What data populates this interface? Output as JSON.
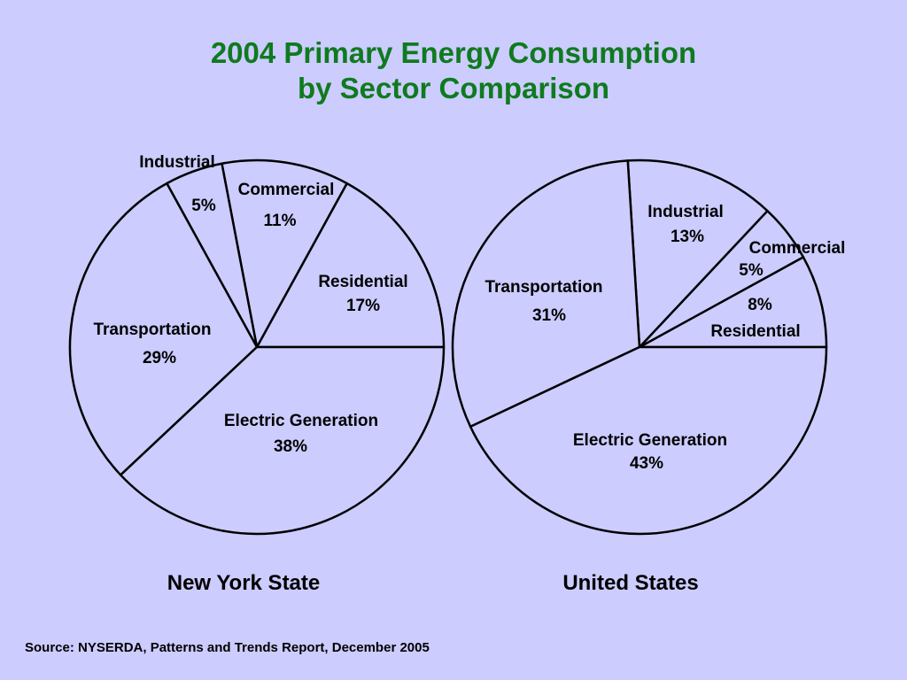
{
  "title": {
    "line1": "2004 Primary Energy Consumption",
    "line2": "by Sector Comparison"
  },
  "source": "Source: NYSERDA, Patterns and Trends Report, December 2005",
  "colors": {
    "background": "#ccccff",
    "title": "#0f7a1f",
    "slice_fill": "#ccccff",
    "stroke": "#000000"
  },
  "chart_data": [
    {
      "type": "pie",
      "title": "New York State",
      "slices": [
        {
          "label": "Residential",
          "value": 17,
          "value_label": "17%"
        },
        {
          "label": "Commercial",
          "value": 11,
          "value_label": "11%"
        },
        {
          "label": "Industrial",
          "value": 5,
          "value_label": "5%"
        },
        {
          "label": "Transportation",
          "value": 29,
          "value_label": "29%"
        },
        {
          "label": "Electric Generation",
          "value": 38,
          "value_label": "38%"
        }
      ]
    },
    {
      "type": "pie",
      "title": "United States",
      "slices": [
        {
          "label": "Residential",
          "value": 8,
          "value_label": "8%"
        },
        {
          "label": "Commercial",
          "value": 5,
          "value_label": "5%"
        },
        {
          "label": "Industrial",
          "value": 13,
          "value_label": "13%"
        },
        {
          "label": "Transportation",
          "value": 31,
          "value_label": "31%"
        },
        {
          "label": "Electric Generation",
          "value": 43,
          "value_label": "43%"
        }
      ]
    }
  ]
}
